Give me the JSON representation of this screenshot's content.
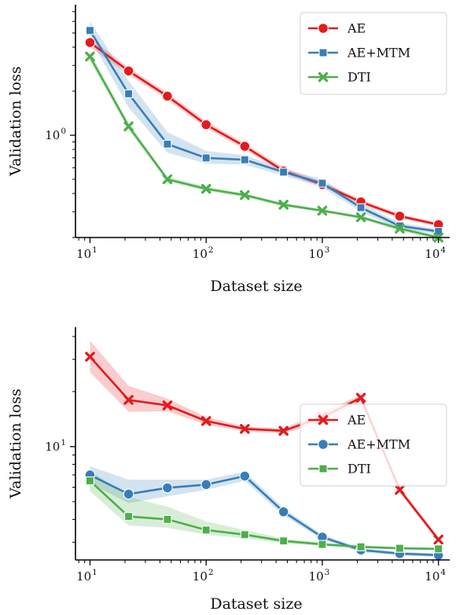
{
  "colors": {
    "AE": "#e41a1c",
    "AE+MTM": "#377eb8",
    "DTI": "#4daf4a"
  },
  "chart_data": [
    {
      "type": "line",
      "xlabel": "Dataset size",
      "ylabel": "Validation loss",
      "xscale": "log",
      "yscale": "log",
      "xlim": [
        7.5,
        12500
      ],
      "ylim": [
        0.2,
        7.8
      ],
      "xticks": [
        {
          "value": 10,
          "base": "10",
          "exp": "1"
        },
        {
          "value": 100,
          "base": "10",
          "exp": "2"
        },
        {
          "value": 1000,
          "base": "10",
          "exp": "3"
        },
        {
          "value": 10000,
          "base": "10",
          "exp": "4"
        }
      ],
      "yticks": [
        {
          "value": 1,
          "base": "10",
          "exp": "0"
        }
      ],
      "yminor": [
        0.2,
        0.3,
        0.4,
        0.5,
        0.6,
        0.7,
        0.8,
        0.9,
        2,
        3,
        4,
        5,
        6,
        7
      ],
      "legend_position": "top-right",
      "x": [
        10,
        21.5,
        46.4,
        100,
        215,
        464,
        1000,
        2150,
        4640,
        10000
      ],
      "series": [
        {
          "name": "AE",
          "marker": "circle",
          "values": [
            4.3,
            2.75,
            1.85,
            1.18,
            0.84,
            0.57,
            0.46,
            0.35,
            0.28,
            0.245
          ],
          "lower": [
            4.0,
            2.6,
            1.75,
            1.12,
            0.8,
            0.55,
            0.445,
            0.335,
            0.27,
            0.237
          ],
          "upper": [
            4.65,
            2.9,
            1.95,
            1.25,
            0.88,
            0.6,
            0.48,
            0.365,
            0.29,
            0.253
          ]
        },
        {
          "name": "AE+MTM",
          "marker": "square",
          "values": [
            5.2,
            1.92,
            0.87,
            0.7,
            0.68,
            0.56,
            0.47,
            0.32,
            0.24,
            0.22
          ],
          "lower": [
            4.6,
            1.55,
            0.76,
            0.64,
            0.63,
            0.53,
            0.44,
            0.3,
            0.228,
            0.212
          ],
          "upper": [
            6.0,
            2.35,
            1.05,
            0.78,
            0.73,
            0.59,
            0.5,
            0.34,
            0.252,
            0.228
          ]
        },
        {
          "name": "DTI",
          "marker": "x",
          "values": [
            3.45,
            1.15,
            0.5,
            0.43,
            0.39,
            0.335,
            0.305,
            0.275,
            0.23,
            0.2
          ],
          "lower": [
            3.2,
            1.09,
            0.48,
            0.415,
            0.378,
            0.325,
            0.297,
            0.268,
            0.222,
            0.194
          ],
          "upper": [
            3.7,
            1.21,
            0.52,
            0.445,
            0.4,
            0.345,
            0.313,
            0.282,
            0.238,
            0.206
          ]
        }
      ]
    },
    {
      "type": "line",
      "xlabel": "Dataset size",
      "ylabel": "Validation loss",
      "xscale": "log",
      "yscale": "log",
      "xlim": [
        7.5,
        12500
      ],
      "ylim": [
        2.4,
        45
      ],
      "xticks": [
        {
          "value": 10,
          "base": "10",
          "exp": "1"
        },
        {
          "value": 100,
          "base": "10",
          "exp": "2"
        },
        {
          "value": 1000,
          "base": "10",
          "exp": "3"
        },
        {
          "value": 10000,
          "base": "10",
          "exp": "4"
        }
      ],
      "yticks": [
        {
          "value": 10,
          "base": "10",
          "exp": "1"
        }
      ],
      "yminor": [
        3,
        4,
        5,
        6,
        7,
        8,
        9,
        20,
        30,
        40
      ],
      "legend_position": "center-right",
      "x": [
        10,
        21.5,
        46.4,
        100,
        215,
        464,
        1000,
        2150,
        4640,
        10000
      ],
      "series": [
        {
          "name": "AE",
          "marker": "x",
          "values": [
            31,
            18,
            16.8,
            13.8,
            12.5,
            12.2,
            14.5,
            18.5,
            5.8,
            3.1
          ],
          "lower": [
            25.5,
            15.5,
            15.6,
            13.2,
            12.1,
            11.8,
            13.6,
            17.8,
            5.6,
            3.0
          ],
          "upper": [
            38,
            21.5,
            18.3,
            14.5,
            12.9,
            12.6,
            15.4,
            19.2,
            6.0,
            3.2
          ]
        },
        {
          "name": "AE+MTM",
          "marker": "circle",
          "values": [
            7.0,
            5.5,
            5.95,
            6.2,
            6.9,
            4.4,
            3.2,
            2.72,
            2.6,
            2.55
          ],
          "lower": [
            6.3,
            4.9,
            5.35,
            5.8,
            6.5,
            4.2,
            3.1,
            2.65,
            2.54,
            2.49
          ],
          "upper": [
            7.8,
            6.6,
            6.6,
            6.6,
            7.3,
            4.6,
            3.3,
            2.79,
            2.66,
            2.61
          ]
        },
        {
          "name": "DTI",
          "marker": "square",
          "values": [
            6.5,
            4.15,
            4.0,
            3.5,
            3.3,
            3.05,
            2.92,
            2.83,
            2.78,
            2.76
          ],
          "lower": [
            5.7,
            3.7,
            3.6,
            3.3,
            3.15,
            2.96,
            2.86,
            2.78,
            2.74,
            2.72
          ],
          "upper": [
            7.4,
            5.3,
            4.7,
            3.9,
            3.5,
            3.14,
            2.98,
            2.88,
            2.82,
            2.8
          ]
        }
      ]
    }
  ]
}
